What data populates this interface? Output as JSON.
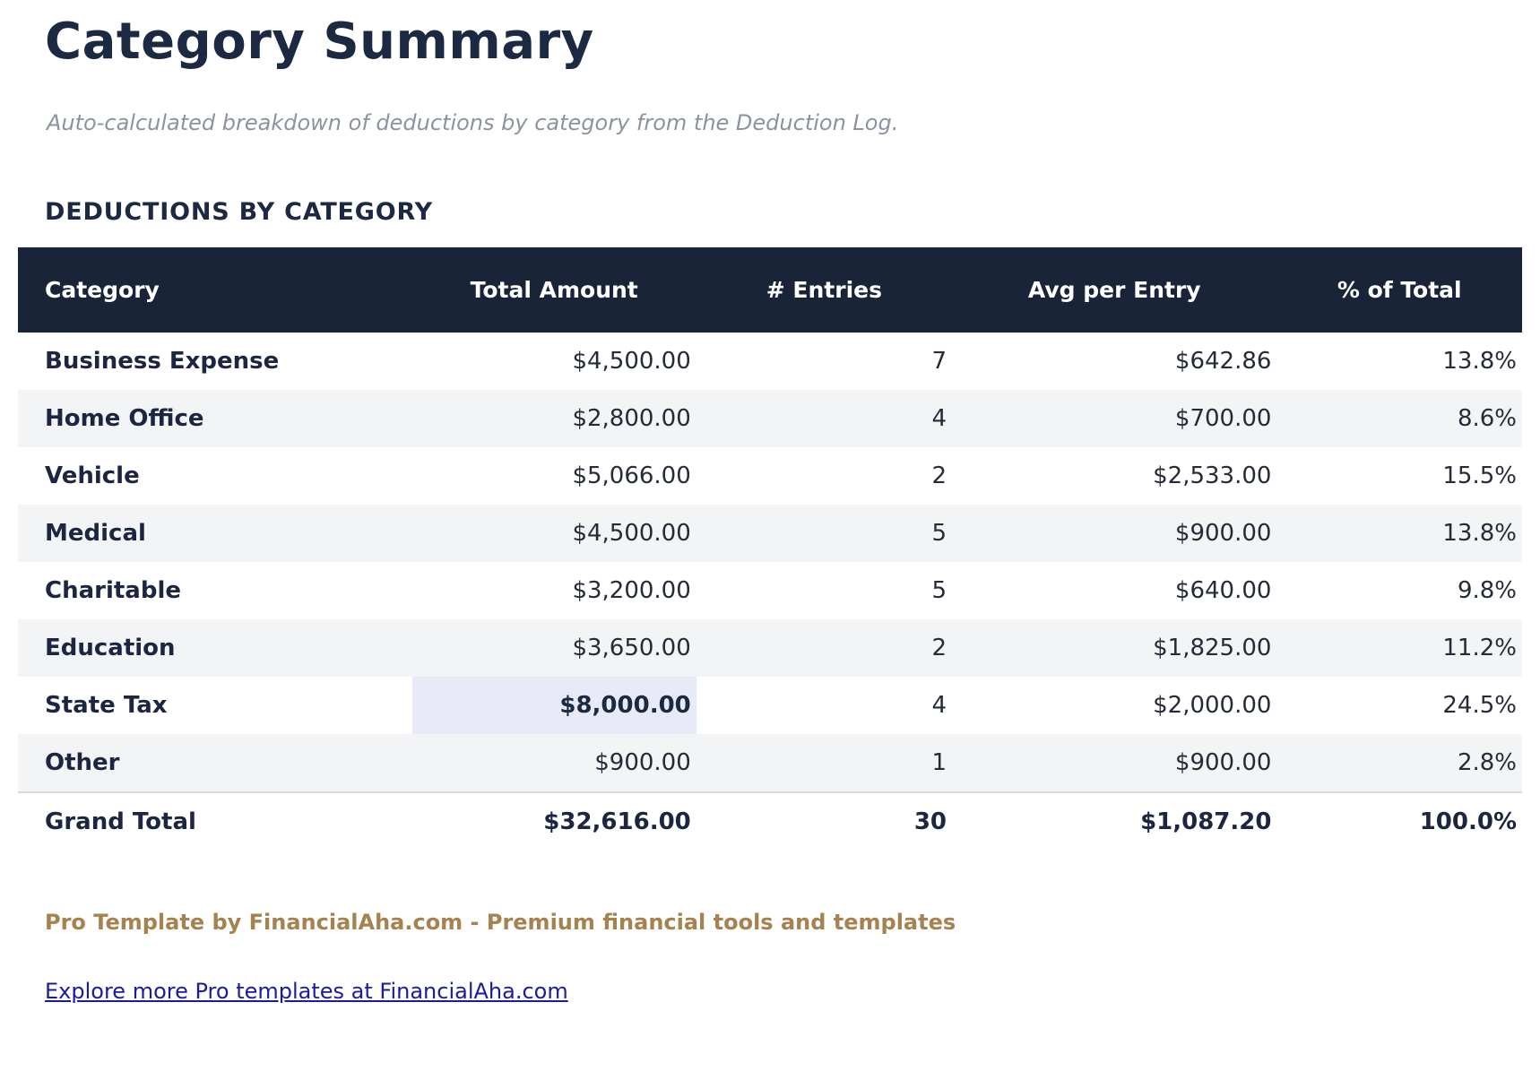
{
  "page": {
    "title": "Category Summary",
    "subtitle": "Auto-calculated breakdown of deductions by category from the Deduction Log."
  },
  "section": {
    "heading": "DEDUCTIONS BY CATEGORY"
  },
  "table": {
    "columns": [
      "Category",
      "Total Amount",
      "# Entries",
      "Avg per Entry",
      "% of Total"
    ],
    "rows": [
      {
        "category": "Business Expense",
        "total": "$4,500.00",
        "entries": "7",
        "avg": "$642.86",
        "pct": "13.8%",
        "highlight_total": false
      },
      {
        "category": "Home Office",
        "total": "$2,800.00",
        "entries": "4",
        "avg": "$700.00",
        "pct": "8.6%",
        "highlight_total": false
      },
      {
        "category": "Vehicle",
        "total": "$5,066.00",
        "entries": "2",
        "avg": "$2,533.00",
        "pct": "15.5%",
        "highlight_total": false
      },
      {
        "category": "Medical",
        "total": "$4,500.00",
        "entries": "5",
        "avg": "$900.00",
        "pct": "13.8%",
        "highlight_total": false
      },
      {
        "category": "Charitable",
        "total": "$3,200.00",
        "entries": "5",
        "avg": "$640.00",
        "pct": "9.8%",
        "highlight_total": false
      },
      {
        "category": "Education",
        "total": "$3,650.00",
        "entries": "2",
        "avg": "$1,825.00",
        "pct": "11.2%",
        "highlight_total": false
      },
      {
        "category": "State Tax",
        "total": "$8,000.00",
        "entries": "4",
        "avg": "$2,000.00",
        "pct": "24.5%",
        "highlight_total": true
      },
      {
        "category": "Other",
        "total": "$900.00",
        "entries": "1",
        "avg": "$900.00",
        "pct": "2.8%",
        "highlight_total": false
      }
    ],
    "grand_total": {
      "category": "Grand Total",
      "total": "$32,616.00",
      "entries": "30",
      "avg": "$1,087.20",
      "pct": "100.0%"
    }
  },
  "footer": {
    "brand_line": "Pro Template by FinancialAha.com - Premium financial tools and templates",
    "link_text": "Explore more Pro templates at FinancialAha.com"
  },
  "colors": {
    "navy_header_bg": "#1a2438",
    "navy_text": "#1b2942",
    "stripe_gray": "#f3f4f6",
    "highlight_cell": "#e8ebf7",
    "subtitle_gray": "#8b92a2",
    "brand_tan": "#a5824e",
    "link_blue": "#1b1ba0"
  }
}
